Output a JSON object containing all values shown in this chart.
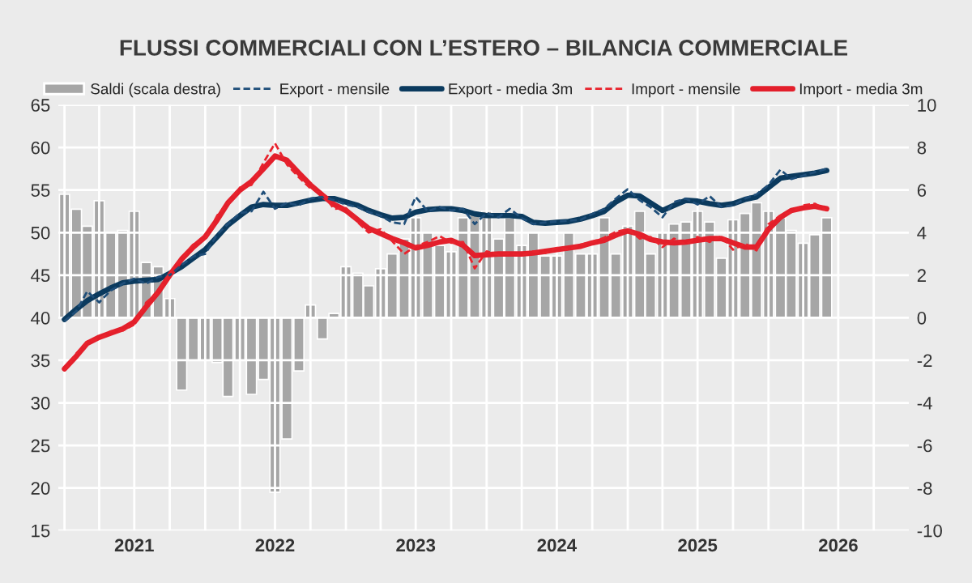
{
  "chart_data": {
    "type": "line",
    "title": "FLUSSI COMMERCIALI CON L’ESTERO – BILANCIA COMMERCIALE",
    "x": [
      "2021-01",
      "2021-02",
      "2021-03",
      "2021-04",
      "2021-05",
      "2021-06",
      "2021-07",
      "2021-08",
      "2021-09",
      "2021-10",
      "2021-11",
      "2021-12",
      "2022-01",
      "2022-02",
      "2022-03",
      "2022-04",
      "2022-05",
      "2022-06",
      "2022-07",
      "2022-08",
      "2022-09",
      "2022-10",
      "2022-11",
      "2022-12",
      "2023-01",
      "2023-02",
      "2023-03",
      "2023-04",
      "2023-05",
      "2023-06",
      "2023-07",
      "2023-08",
      "2023-09",
      "2023-10",
      "2023-11",
      "2023-12",
      "2024-01",
      "2024-02",
      "2024-03",
      "2024-04",
      "2024-05",
      "2024-06",
      "2024-07",
      "2024-08",
      "2024-09",
      "2024-10",
      "2024-11",
      "2024-12",
      "2025-01",
      "2025-02",
      "2025-03",
      "2025-04",
      "2025-05",
      "2025-06",
      "2025-07",
      "2025-08",
      "2025-09",
      "2025-10",
      "2025-11",
      "2025-12",
      "2026-01",
      "2026-02",
      "2026-03",
      "2026-04",
      "2026-05",
      "2026-06"
    ],
    "series": [
      {
        "name": "Saldi (scala destra)",
        "type": "bar",
        "axis": "y2",
        "color": "#a6a6a6",
        "values": [
          5.8,
          5.1,
          4.3,
          5.5,
          4.0,
          4.1,
          5.0,
          2.6,
          2.4,
          0.9,
          -3.4,
          -2.0,
          -2.0,
          -2.1,
          -3.7,
          -2.0,
          -3.6,
          -2.9,
          -8.2,
          -5.7,
          -2.5,
          0.6,
          -1.0,
          0.2,
          2.4,
          2.1,
          1.5,
          2.3,
          3.0,
          3.7,
          4.7,
          4.0,
          3.4,
          3.1,
          4.7,
          5.0,
          5.0,
          3.7,
          4.7,
          3.4,
          4.0,
          2.9,
          2.9,
          4.0,
          3.0,
          3.0,
          4.7,
          3.0,
          4.3,
          5.0,
          3.0,
          4.0,
          4.4,
          4.5,
          5.0,
          4.5,
          2.8,
          4.6,
          4.9,
          5.4,
          5.0,
          4.7,
          4.1,
          3.5,
          3.9,
          4.7
        ]
      },
      {
        "name": "Export - mensile",
        "line_style": "dashed",
        "color": "#1f4e79",
        "values": [
          39.6,
          40.8,
          43.1,
          41.8,
          43.2,
          44.0,
          44.6,
          44.0,
          44.8,
          45.0,
          46.2,
          47.2,
          47.5,
          49.8,
          51.0,
          52.3,
          52.5,
          54.8,
          52.8,
          53.5,
          53.2,
          54.0,
          54.2,
          53.8,
          53.3,
          53.0,
          52.4,
          52.0,
          51.2,
          51.0,
          54.2,
          52.5,
          53.0,
          52.6,
          52.8,
          51.0,
          52.3,
          51.8,
          52.8,
          51.7,
          51.0,
          51.2,
          51.3,
          51.4,
          51.5,
          52.2,
          52.8,
          54.0,
          55.1,
          53.8,
          53.0,
          51.8,
          53.6,
          54.0,
          53.3,
          54.3,
          53.0,
          53.2,
          54.0,
          54.5,
          55.6,
          57.4,
          56.3,
          56.7,
          57.1,
          57.5
        ]
      },
      {
        "name": "Export - media 3m",
        "line_style": "solid",
        "color": "#0b3a5e",
        "values": [
          39.8,
          41.0,
          42.0,
          42.8,
          43.5,
          44.1,
          44.3,
          44.4,
          44.5,
          45.2,
          46.0,
          47.0,
          48.0,
          49.5,
          50.9,
          52.0,
          53.0,
          53.3,
          53.2,
          53.2,
          53.5,
          53.8,
          54.0,
          54.0,
          53.6,
          53.2,
          52.6,
          52.1,
          51.7,
          51.8,
          52.4,
          52.7,
          52.8,
          52.8,
          52.6,
          52.2,
          52.0,
          52.0,
          52.0,
          51.9,
          51.2,
          51.1,
          51.2,
          51.3,
          51.6,
          52.0,
          52.5,
          53.6,
          54.4,
          54.3,
          53.5,
          52.6,
          53.2,
          53.8,
          53.7,
          53.4,
          53.2,
          53.4,
          53.9,
          54.2,
          55.3,
          56.4,
          56.6,
          56.8,
          57.0,
          57.3
        ]
      },
      {
        "name": "Import - mensile",
        "line_style": "dashed",
        "color": "#e8232d",
        "values": [
          33.8,
          35.8,
          37.2,
          37.5,
          38.4,
          38.5,
          39.2,
          41.8,
          43.0,
          45.3,
          47.0,
          48.6,
          49.2,
          52.0,
          53.4,
          55.3,
          55.6,
          58.2,
          60.5,
          58.0,
          56.5,
          55.2,
          54.6,
          52.8,
          52.9,
          51.2,
          50.0,
          50.4,
          49.0,
          47.5,
          48.4,
          48.9,
          49.6,
          48.8,
          48.9,
          45.8,
          47.8,
          47.4,
          47.6,
          47.3,
          47.8,
          47.6,
          48.2,
          48.0,
          48.6,
          48.9,
          49.4,
          50.1,
          50.4,
          49.3,
          49.5,
          48.3,
          49.3,
          48.6,
          49.5,
          48.9,
          49.6,
          48.0,
          48.7,
          47.9,
          51.0,
          52.0,
          52.4,
          53.2,
          53.4,
          52.6
        ]
      },
      {
        "name": "Import - media 3m",
        "line_style": "solid",
        "color": "#e31f2b",
        "values": [
          34.0,
          35.5,
          37.0,
          37.7,
          38.2,
          38.7,
          39.5,
          41.3,
          43.0,
          45.0,
          46.9,
          48.3,
          49.5,
          51.5,
          53.5,
          55.0,
          56.0,
          57.5,
          59.0,
          58.5,
          57.0,
          55.6,
          54.4,
          53.3,
          52.6,
          51.5,
          50.5,
          49.9,
          49.3,
          48.8,
          48.2,
          48.5,
          48.9,
          49.1,
          48.5,
          47.3,
          47.4,
          47.5,
          47.5,
          47.5,
          47.6,
          47.8,
          48.0,
          48.2,
          48.4,
          48.8,
          49.1,
          49.7,
          50.2,
          49.8,
          49.2,
          48.9,
          48.8,
          48.9,
          49.1,
          49.3,
          49.3,
          48.8,
          48.3,
          48.3,
          50.4,
          51.8,
          52.6,
          52.9,
          53.1,
          52.8
        ]
      }
    ],
    "xlim": [
      "2020-12-16",
      "2026-12-31"
    ],
    "xticks": [
      {
        "value": "2021-01-01",
        "label": null
      },
      {
        "value": "2021-04-01",
        "label": null
      },
      {
        "value": "2021-07-01",
        "label": "2021"
      },
      {
        "value": "2021-10-01",
        "label": null
      },
      {
        "value": "2022-01-01",
        "label": null
      },
      {
        "value": "2022-04-01",
        "label": null
      },
      {
        "value": "2022-07-01",
        "label": "2022"
      },
      {
        "value": "2022-10-01",
        "label": null
      },
      {
        "value": "2023-01-01",
        "label": null
      },
      {
        "value": "2023-04-01",
        "label": null
      },
      {
        "value": "2023-07-01",
        "label": "2023"
      },
      {
        "value": "2023-10-01",
        "label": null
      },
      {
        "value": "2024-01-01",
        "label": null
      },
      {
        "value": "2024-04-01",
        "label": null
      },
      {
        "value": "2024-07-01",
        "label": "2024"
      },
      {
        "value": "2024-10-01",
        "label": null
      },
      {
        "value": "2025-01-01",
        "label": null
      },
      {
        "value": "2025-04-01",
        "label": null
      },
      {
        "value": "2025-07-01",
        "label": "2025"
      },
      {
        "value": "2025-10-01",
        "label": null
      },
      {
        "value": "2026-01-01",
        "label": null
      },
      {
        "value": "2026-04-01",
        "label": null
      },
      {
        "value": "2026-07-01",
        "label": "2026"
      },
      {
        "value": "2026-10-01",
        "label": null
      }
    ],
    "ylim": [
      15,
      65
    ],
    "yticks": [
      15,
      20,
      25,
      30,
      35,
      40,
      45,
      50,
      55,
      60,
      65
    ],
    "y2lim": [
      -10,
      10
    ],
    "y2ticks": [
      -10,
      -8,
      -6,
      -4,
      -2,
      0,
      2,
      4,
      6,
      8,
      10
    ],
    "grid": true,
    "legend": "top"
  }
}
